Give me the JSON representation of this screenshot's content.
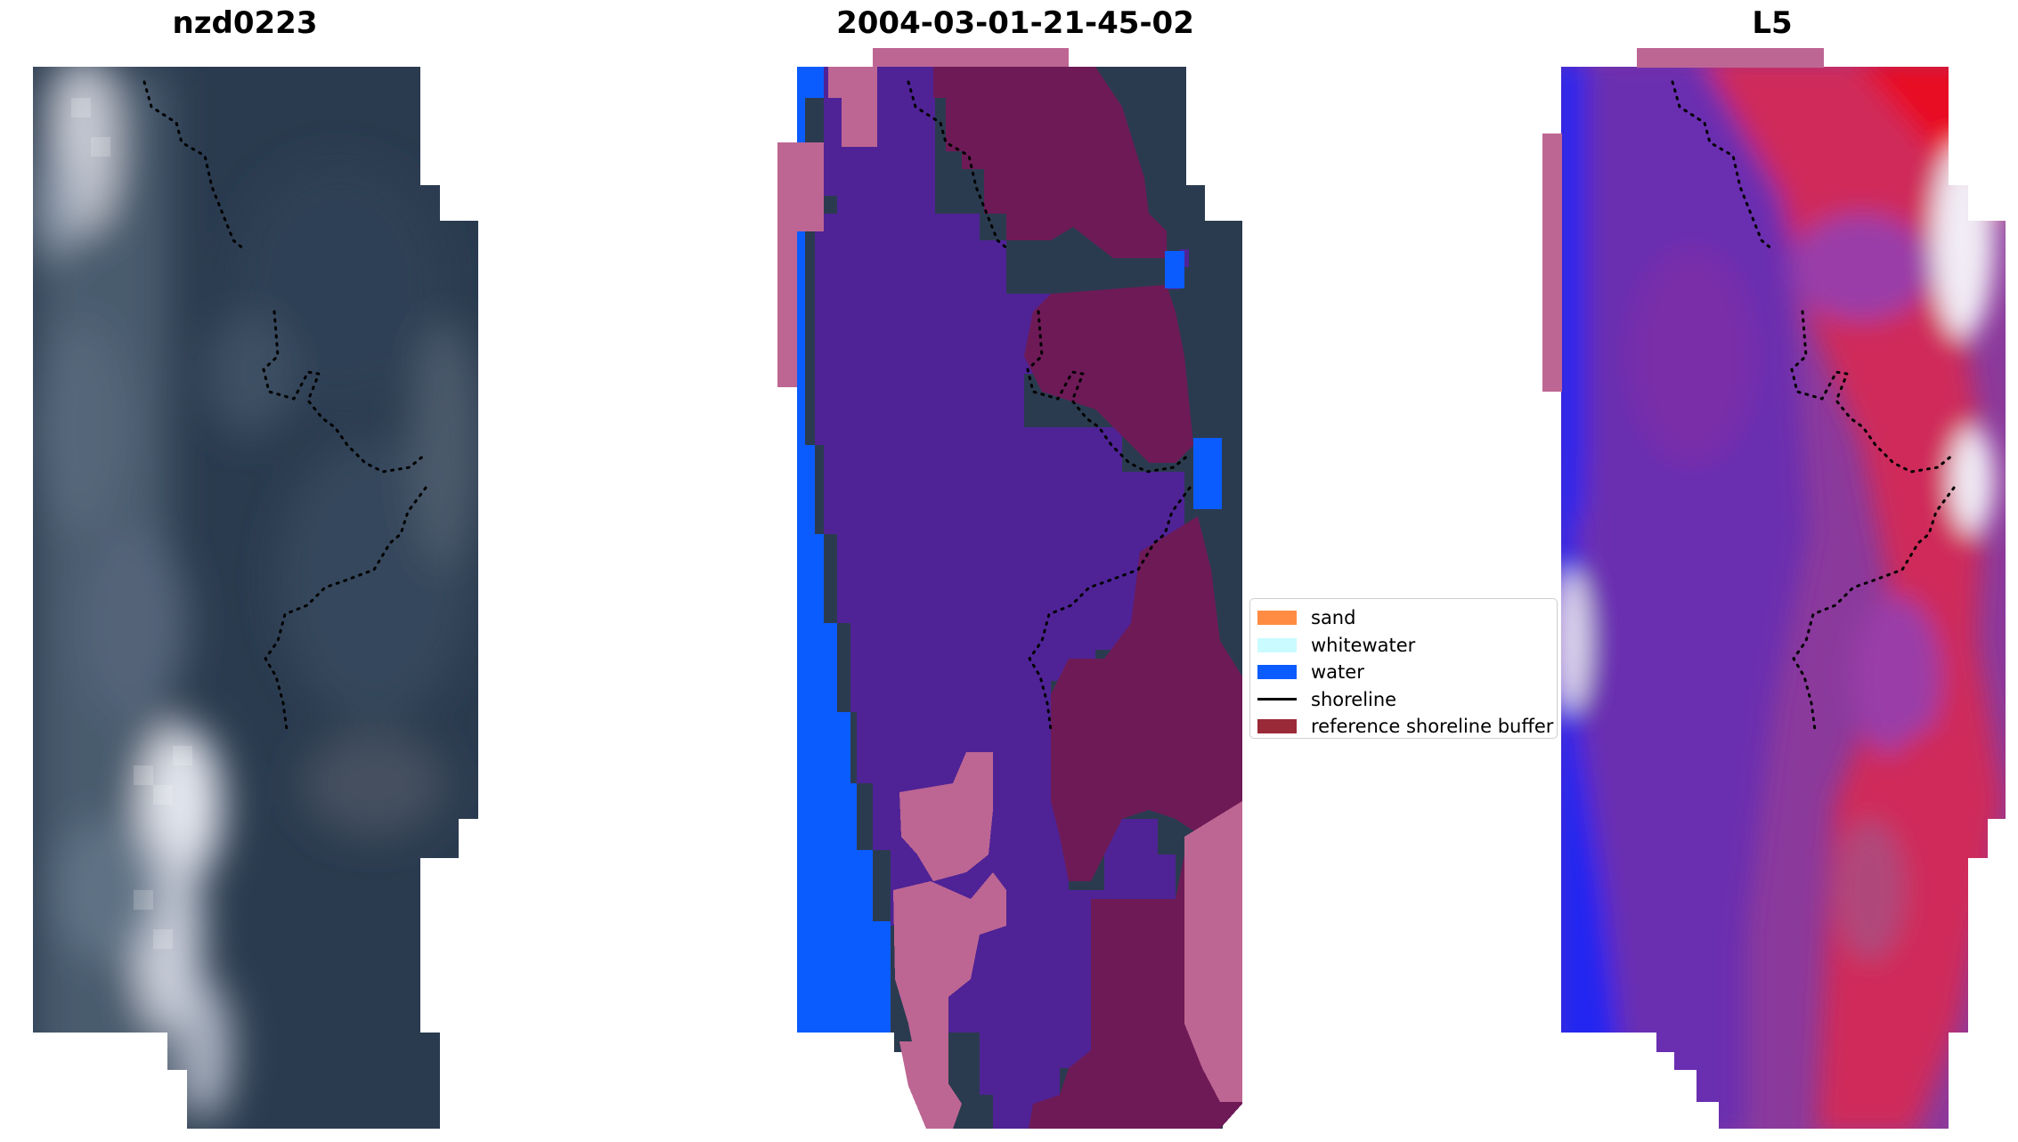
{
  "panels": {
    "left": {
      "title": "nzd0223"
    },
    "middle": {
      "title": "2004-03-01-21-45-02"
    },
    "right": {
      "title": "L5"
    }
  },
  "legend": {
    "items": [
      {
        "label": "sand",
        "color": "#ff8c42",
        "kind": "patch"
      },
      {
        "label": "whitewater",
        "color": "#c9fbff",
        "kind": "patch"
      },
      {
        "label": "water",
        "color": "#0a5cff",
        "kind": "patch"
      },
      {
        "label": "shoreline",
        "color": "#000000",
        "kind": "line"
      },
      {
        "label": "reference shoreline buffer",
        "color": "#9b2a38",
        "kind": "patch"
      }
    ]
  },
  "colors": {
    "rgb_dark": "#29394c",
    "rgb_light": "#d9dde6",
    "class_water": "#0a5cff",
    "class_overlay_purple": "#4f2396",
    "class_buffer": "#6e1a57",
    "class_pink": "#bd6693",
    "index_blue": "#1f23e8",
    "index_purple": "#6a2fb0",
    "index_red": "#d51845",
    "index_white": "#f2f0f8"
  }
}
